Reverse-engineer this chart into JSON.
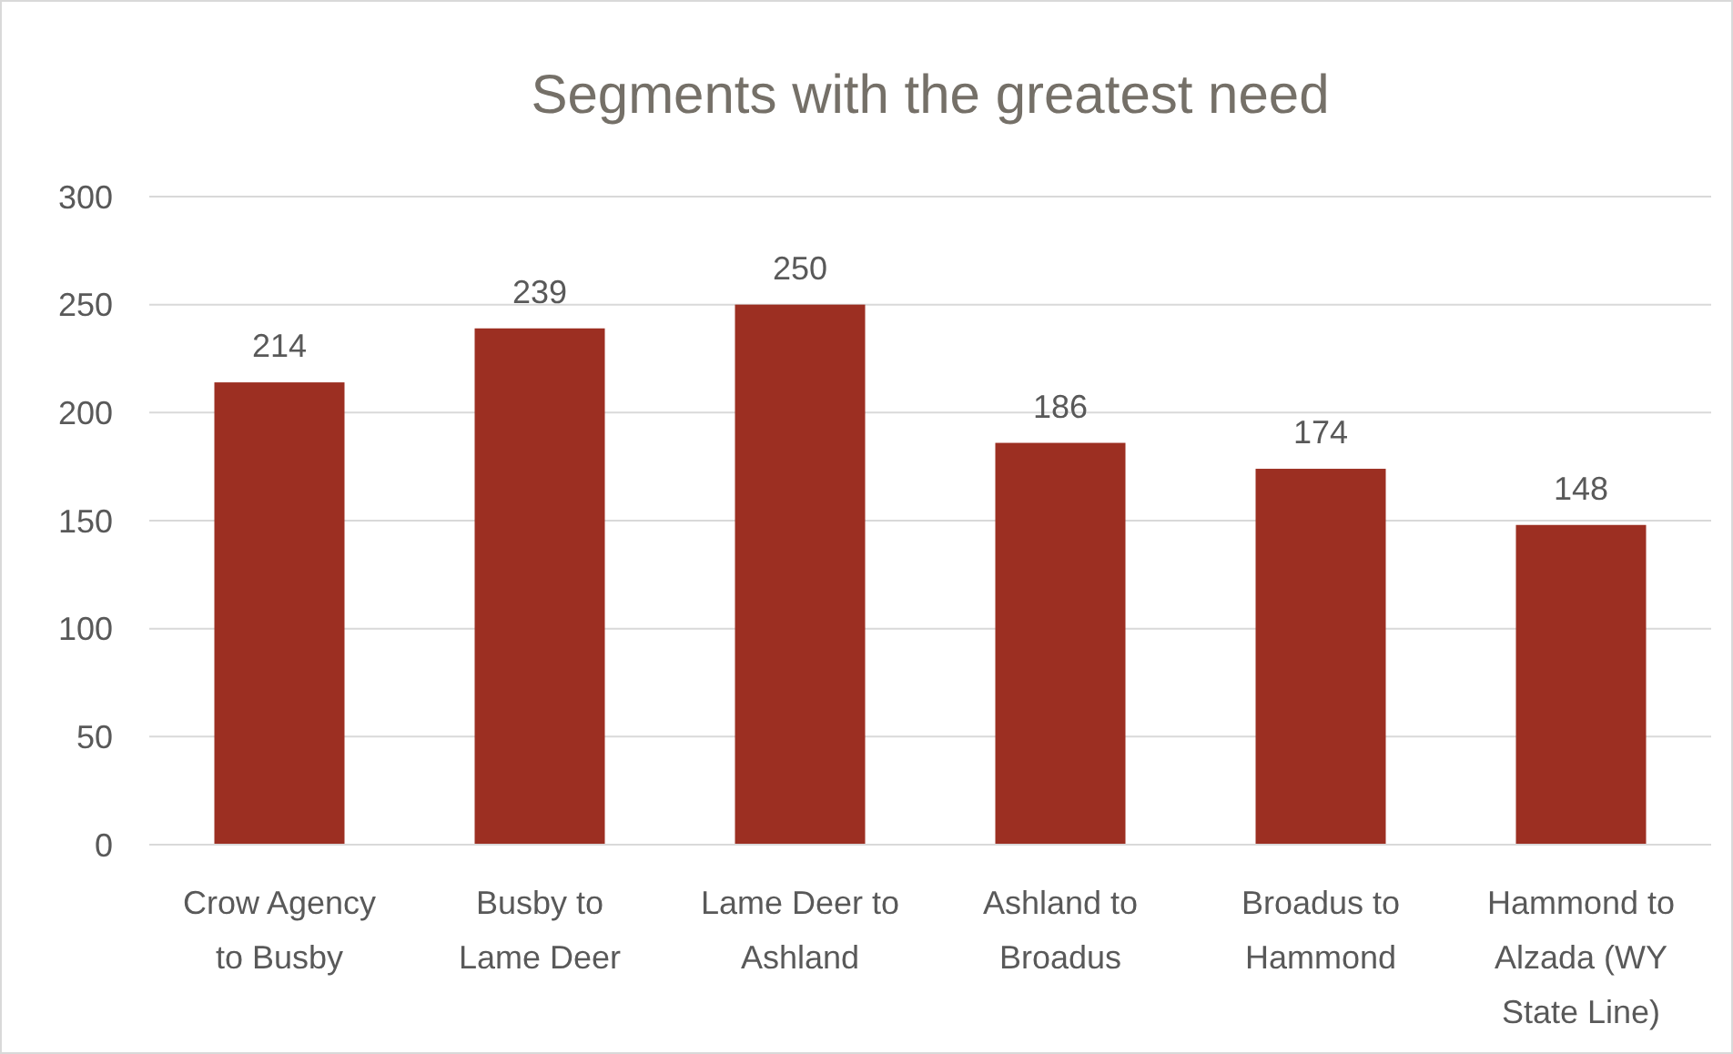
{
  "chart_data": {
    "type": "bar",
    "title": "Segments with the greatest need",
    "categories": [
      "Crow Agency to Busby",
      "Busby to Lame Deer",
      "Lame Deer to Ashland",
      "Ashland to Broadus",
      "Broadus to Hammond",
      "Hammond to Alzada (WY State Line)"
    ],
    "values": [
      214,
      239,
      250,
      186,
      174,
      148
    ],
    "color": "#9c2f22",
    "ylim": [
      0,
      300
    ],
    "yticks": [
      0,
      50,
      100,
      150,
      200,
      250,
      300
    ],
    "grid": "y",
    "data_labels": true
  }
}
